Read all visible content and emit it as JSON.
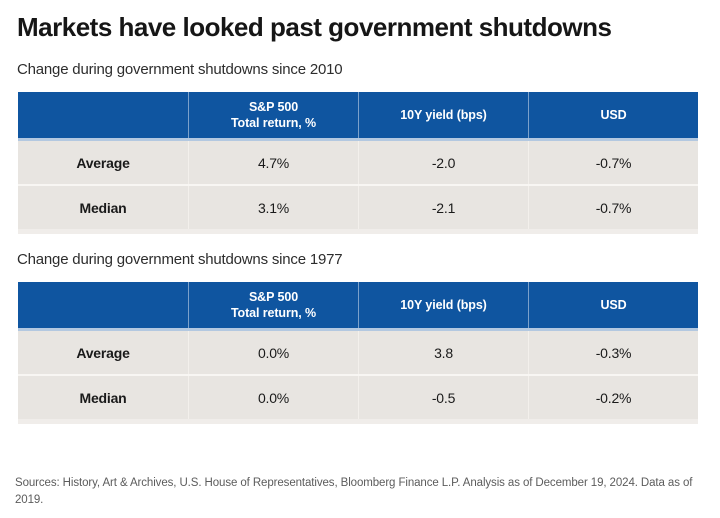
{
  "title": "Markets have looked past government shutdowns",
  "footer": {
    "sources": "Sources: History, Art & Archives, U.S. House of Representatives, Bloomberg Finance L.P. Analysis as of December 19, 2024. Data as of 2019."
  },
  "colors": {
    "header_blue": "#0f55a0",
    "row_background": "#e8e5e1",
    "header_underline": "#b3c8e0",
    "footer_text": "#5c5c5c"
  },
  "chart_data": [
    {
      "type": "table",
      "title": "Change during government shutdowns since 2010",
      "col_headers": {
        "c1": "",
        "c2_line1": "S&P 500",
        "c2_line2": "Total return, %",
        "c3": "10Y yield (bps)",
        "c4": "USD"
      },
      "rows": [
        {
          "label": "Average",
          "sp500": "4.7%",
          "yield10": "-2.0",
          "usd": "-0.7%"
        },
        {
          "label": "Median",
          "sp500": "3.1%",
          "yield10": "-2.1",
          "usd": "-0.7%"
        }
      ]
    },
    {
      "type": "table",
      "title": "Change during government shutdowns since 1977",
      "col_headers": {
        "c1": "",
        "c2_line1": "S&P 500",
        "c2_line2": "Total return, %",
        "c3": "10Y yield (bps)",
        "c4": "USD"
      },
      "rows": [
        {
          "label": "Average",
          "sp500": "0.0%",
          "yield10": "3.8",
          "usd": "-0.3%"
        },
        {
          "label": "Median",
          "sp500": "0.0%",
          "yield10": "-0.5",
          "usd": "-0.2%"
        }
      ]
    }
  ]
}
